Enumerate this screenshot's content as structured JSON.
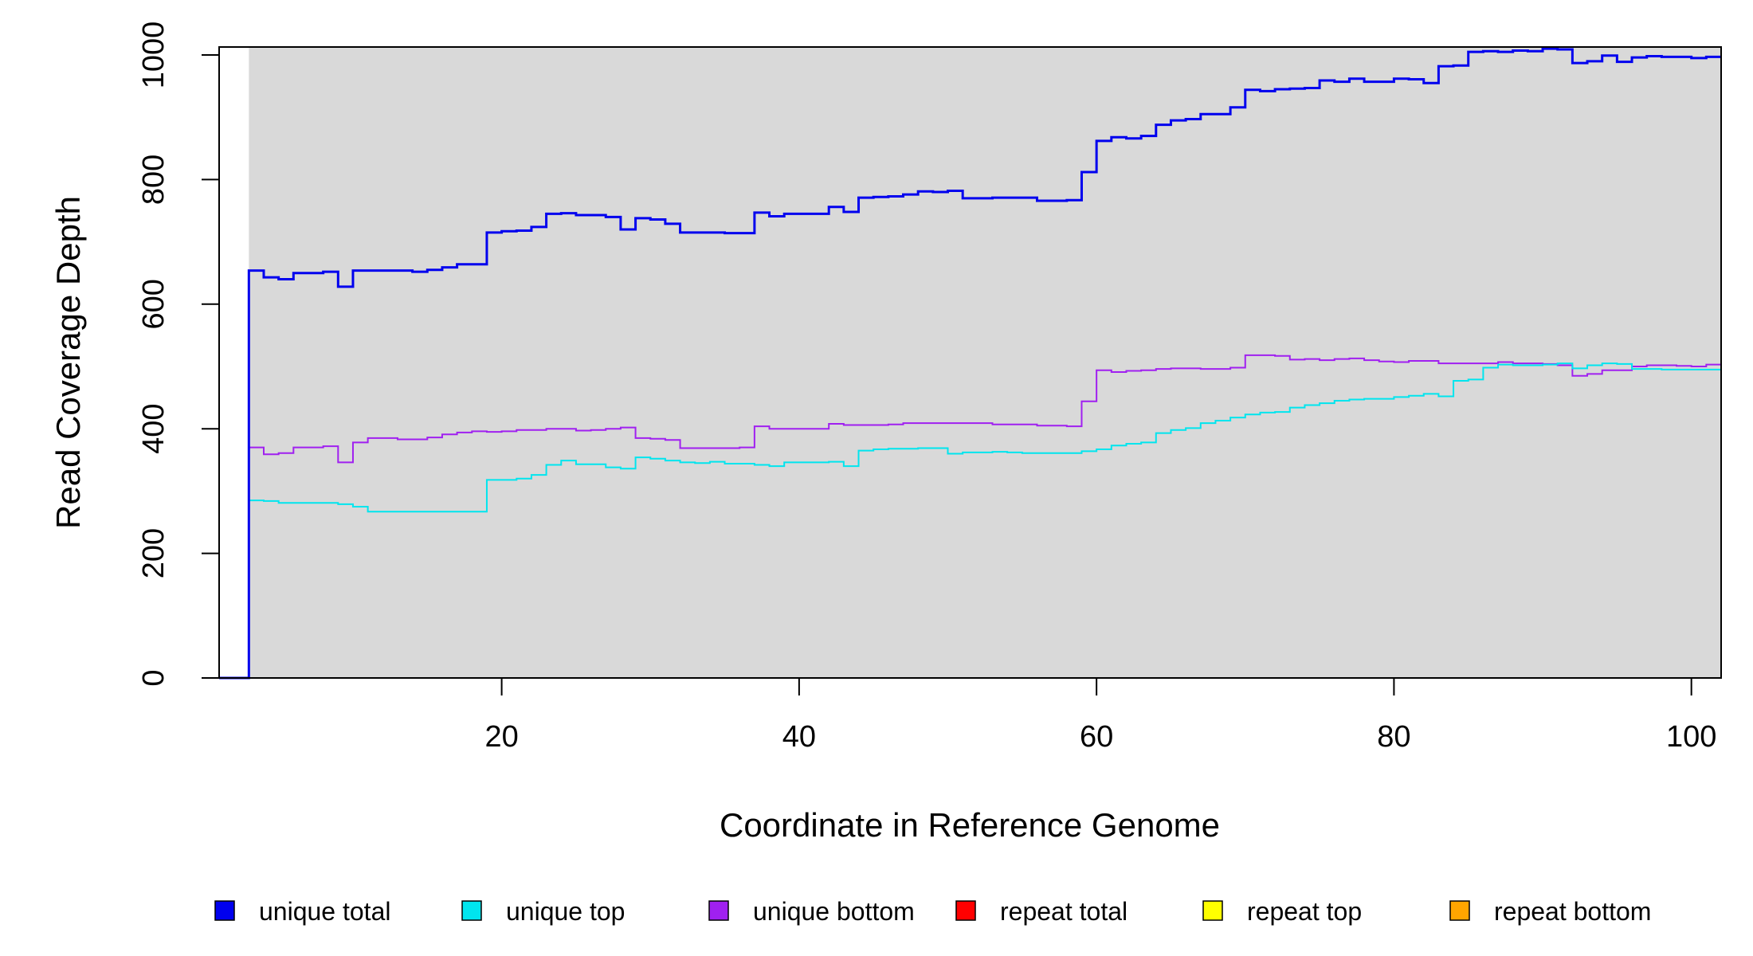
{
  "chart_data": {
    "type": "line",
    "step": true,
    "xlabel": "Coordinate in Reference Genome",
    "ylabel": "Read Coverage Depth",
    "xlim": [
      1,
      102
    ],
    "ylim": [
      0,
      1010
    ],
    "x_ticks": [
      "20",
      "40",
      "60",
      "80",
      "100"
    ],
    "y_ticks": [
      "0",
      "200",
      "400",
      "600",
      "800",
      "1000"
    ],
    "grid": false,
    "shaded_region": {
      "x_from": 3,
      "x_to": 102,
      "color": "#d9d9d9"
    },
    "legend_position": "bottom",
    "x": [
      1,
      2,
      3,
      4,
      5,
      6,
      7,
      8,
      9,
      10,
      11,
      12,
      13,
      14,
      15,
      16,
      17,
      18,
      19,
      20,
      21,
      22,
      23,
      24,
      25,
      26,
      27,
      28,
      29,
      30,
      31,
      32,
      33,
      34,
      35,
      36,
      37,
      38,
      39,
      40,
      41,
      42,
      43,
      44,
      45,
      46,
      47,
      48,
      49,
      50,
      51,
      52,
      53,
      54,
      55,
      56,
      57,
      58,
      59,
      60,
      61,
      62,
      63,
      64,
      65,
      66,
      67,
      68,
      69,
      70,
      71,
      72,
      73,
      74,
      75,
      76,
      77,
      78,
      79,
      80,
      81,
      82,
      83,
      84,
      85,
      86,
      87,
      88,
      89,
      90,
      91,
      92,
      93,
      94,
      95,
      96,
      97,
      98,
      99,
      100,
      101
    ],
    "series": [
      {
        "name": "unique total",
        "color": "#0000ee",
        "values": [
          0,
          0,
          654,
          643,
          640,
          650,
          650,
          652,
          628,
          654,
          654,
          654,
          654,
          652,
          655,
          659,
          664,
          664,
          715,
          717,
          718,
          724,
          745,
          746,
          743,
          743,
          740,
          720,
          738,
          736,
          729,
          715,
          715,
          715,
          714,
          714,
          747,
          741,
          745,
          745,
          745,
          756,
          748,
          771,
          772,
          773,
          776,
          781,
          780,
          782,
          770,
          770,
          771,
          771,
          771,
          766,
          766,
          767,
          812,
          862,
          868,
          866,
          870,
          888,
          895,
          897,
          905,
          905,
          916,
          944,
          942,
          945,
          946,
          947,
          959,
          957,
          962,
          957,
          957,
          962,
          961,
          955,
          982,
          983,
          1005,
          1006,
          1005,
          1007,
          1006,
          1010,
          1009,
          987,
          990,
          999,
          989,
          996,
          998,
          997,
          997,
          995,
          997
        ]
      },
      {
        "name": "unique top",
        "color": "#00e5ee",
        "values": [
          0,
          0,
          285,
          284,
          281,
          281,
          281,
          281,
          279,
          275,
          267,
          267,
          267,
          267,
          267,
          267,
          267,
          267,
          318,
          318,
          320,
          326,
          342,
          349,
          343,
          343,
          338,
          336,
          354,
          352,
          349,
          346,
          345,
          347,
          344,
          344,
          342,
          340,
          346,
          346,
          346,
          347,
          340,
          365,
          367,
          368,
          368,
          369,
          369,
          360,
          362,
          362,
          363,
          362,
          361,
          361,
          361,
          361,
          364,
          367,
          373,
          376,
          378,
          393,
          398,
          401,
          409,
          413,
          418,
          423,
          426,
          427,
          434,
          438,
          441,
          445,
          447,
          448,
          448,
          451,
          453,
          456,
          452,
          477,
          479,
          498,
          503,
          502,
          502,
          503,
          505,
          497,
          502,
          505,
          504,
          496,
          496,
          495,
          495,
          495,
          495
        ]
      },
      {
        "name": "unique bottom",
        "color": "#a020f0",
        "values": [
          0,
          0,
          370,
          359,
          361,
          370,
          370,
          372,
          346,
          378,
          385,
          385,
          383,
          383,
          386,
          391,
          394,
          396,
          395,
          396,
          398,
          398,
          400,
          400,
          397,
          398,
          400,
          402,
          385,
          384,
          382,
          369,
          369,
          369,
          369,
          370,
          404,
          400,
          400,
          400,
          400,
          408,
          406,
          406,
          406,
          407,
          409,
          409,
          409,
          409,
          409,
          409,
          407,
          407,
          407,
          405,
          405,
          404,
          444,
          494,
          491,
          493,
          494,
          496,
          497,
          497,
          496,
          496,
          498,
          518,
          518,
          517,
          511,
          512,
          510,
          512,
          513,
          510,
          508,
          507,
          509,
          509,
          505,
          505,
          505,
          505,
          507,
          505,
          505,
          504,
          502,
          485,
          488,
          494,
          494,
          500,
          502,
          502,
          501,
          500,
          503
        ]
      },
      {
        "name": "repeat total",
        "color": "#ff0000",
        "values": [
          0,
          0,
          0,
          0,
          0,
          0,
          0,
          0,
          0,
          0,
          0,
          0,
          0,
          0,
          0,
          0,
          0,
          0,
          0,
          0,
          0,
          0,
          0,
          0,
          0,
          0,
          0,
          0,
          0,
          0,
          0,
          0,
          0,
          0,
          0,
          0,
          0,
          0,
          0,
          0,
          0,
          0,
          0,
          0,
          0,
          0,
          0,
          0,
          0,
          0,
          0,
          0,
          0,
          0,
          0,
          0,
          0,
          0,
          0,
          0,
          0,
          0,
          0,
          0,
          0,
          0,
          0,
          0,
          0,
          0,
          0,
          0,
          0,
          0,
          0,
          0,
          0,
          0,
          0,
          0,
          0,
          0,
          0,
          0,
          0,
          0,
          0,
          0,
          0,
          0,
          0,
          0,
          0,
          0,
          0,
          0,
          0,
          0,
          0,
          0,
          0
        ]
      },
      {
        "name": "repeat top",
        "color": "#ffff00",
        "values": [
          0,
          0,
          0,
          0,
          0,
          0,
          0,
          0,
          0,
          0,
          0,
          0,
          0,
          0,
          0,
          0,
          0,
          0,
          0,
          0,
          0,
          0,
          0,
          0,
          0,
          0,
          0,
          0,
          0,
          0,
          0,
          0,
          0,
          0,
          0,
          0,
          0,
          0,
          0,
          0,
          0,
          0,
          0,
          0,
          0,
          0,
          0,
          0,
          0,
          0,
          0,
          0,
          0,
          0,
          0,
          0,
          0,
          0,
          0,
          0,
          0,
          0,
          0,
          0,
          0,
          0,
          0,
          0,
          0,
          0,
          0,
          0,
          0,
          0,
          0,
          0,
          0,
          0,
          0,
          0,
          0,
          0,
          0,
          0,
          0,
          0,
          0,
          0,
          0,
          0,
          0,
          0,
          0,
          0,
          0,
          0,
          0,
          0,
          0,
          0,
          0
        ]
      },
      {
        "name": "repeat bottom",
        "color": "#ffa500",
        "values": [
          0,
          0,
          0,
          0,
          0,
          0,
          0,
          0,
          0,
          0,
          0,
          0,
          0,
          0,
          0,
          0,
          0,
          0,
          0,
          0,
          0,
          0,
          0,
          0,
          0,
          0,
          0,
          0,
          0,
          0,
          0,
          0,
          0,
          0,
          0,
          0,
          0,
          0,
          0,
          0,
          0,
          0,
          0,
          0,
          0,
          0,
          0,
          0,
          0,
          0,
          0,
          0,
          0,
          0,
          0,
          0,
          0,
          0,
          0,
          0,
          0,
          0,
          0,
          0,
          0,
          0,
          0,
          0,
          0,
          0,
          0,
          0,
          0,
          0,
          0,
          0,
          0,
          0,
          0,
          0,
          0,
          0,
          0,
          0,
          0,
          0,
          0,
          0,
          0,
          0,
          0,
          0,
          0,
          0,
          0,
          0,
          0,
          0,
          0,
          0,
          0
        ]
      }
    ]
  }
}
